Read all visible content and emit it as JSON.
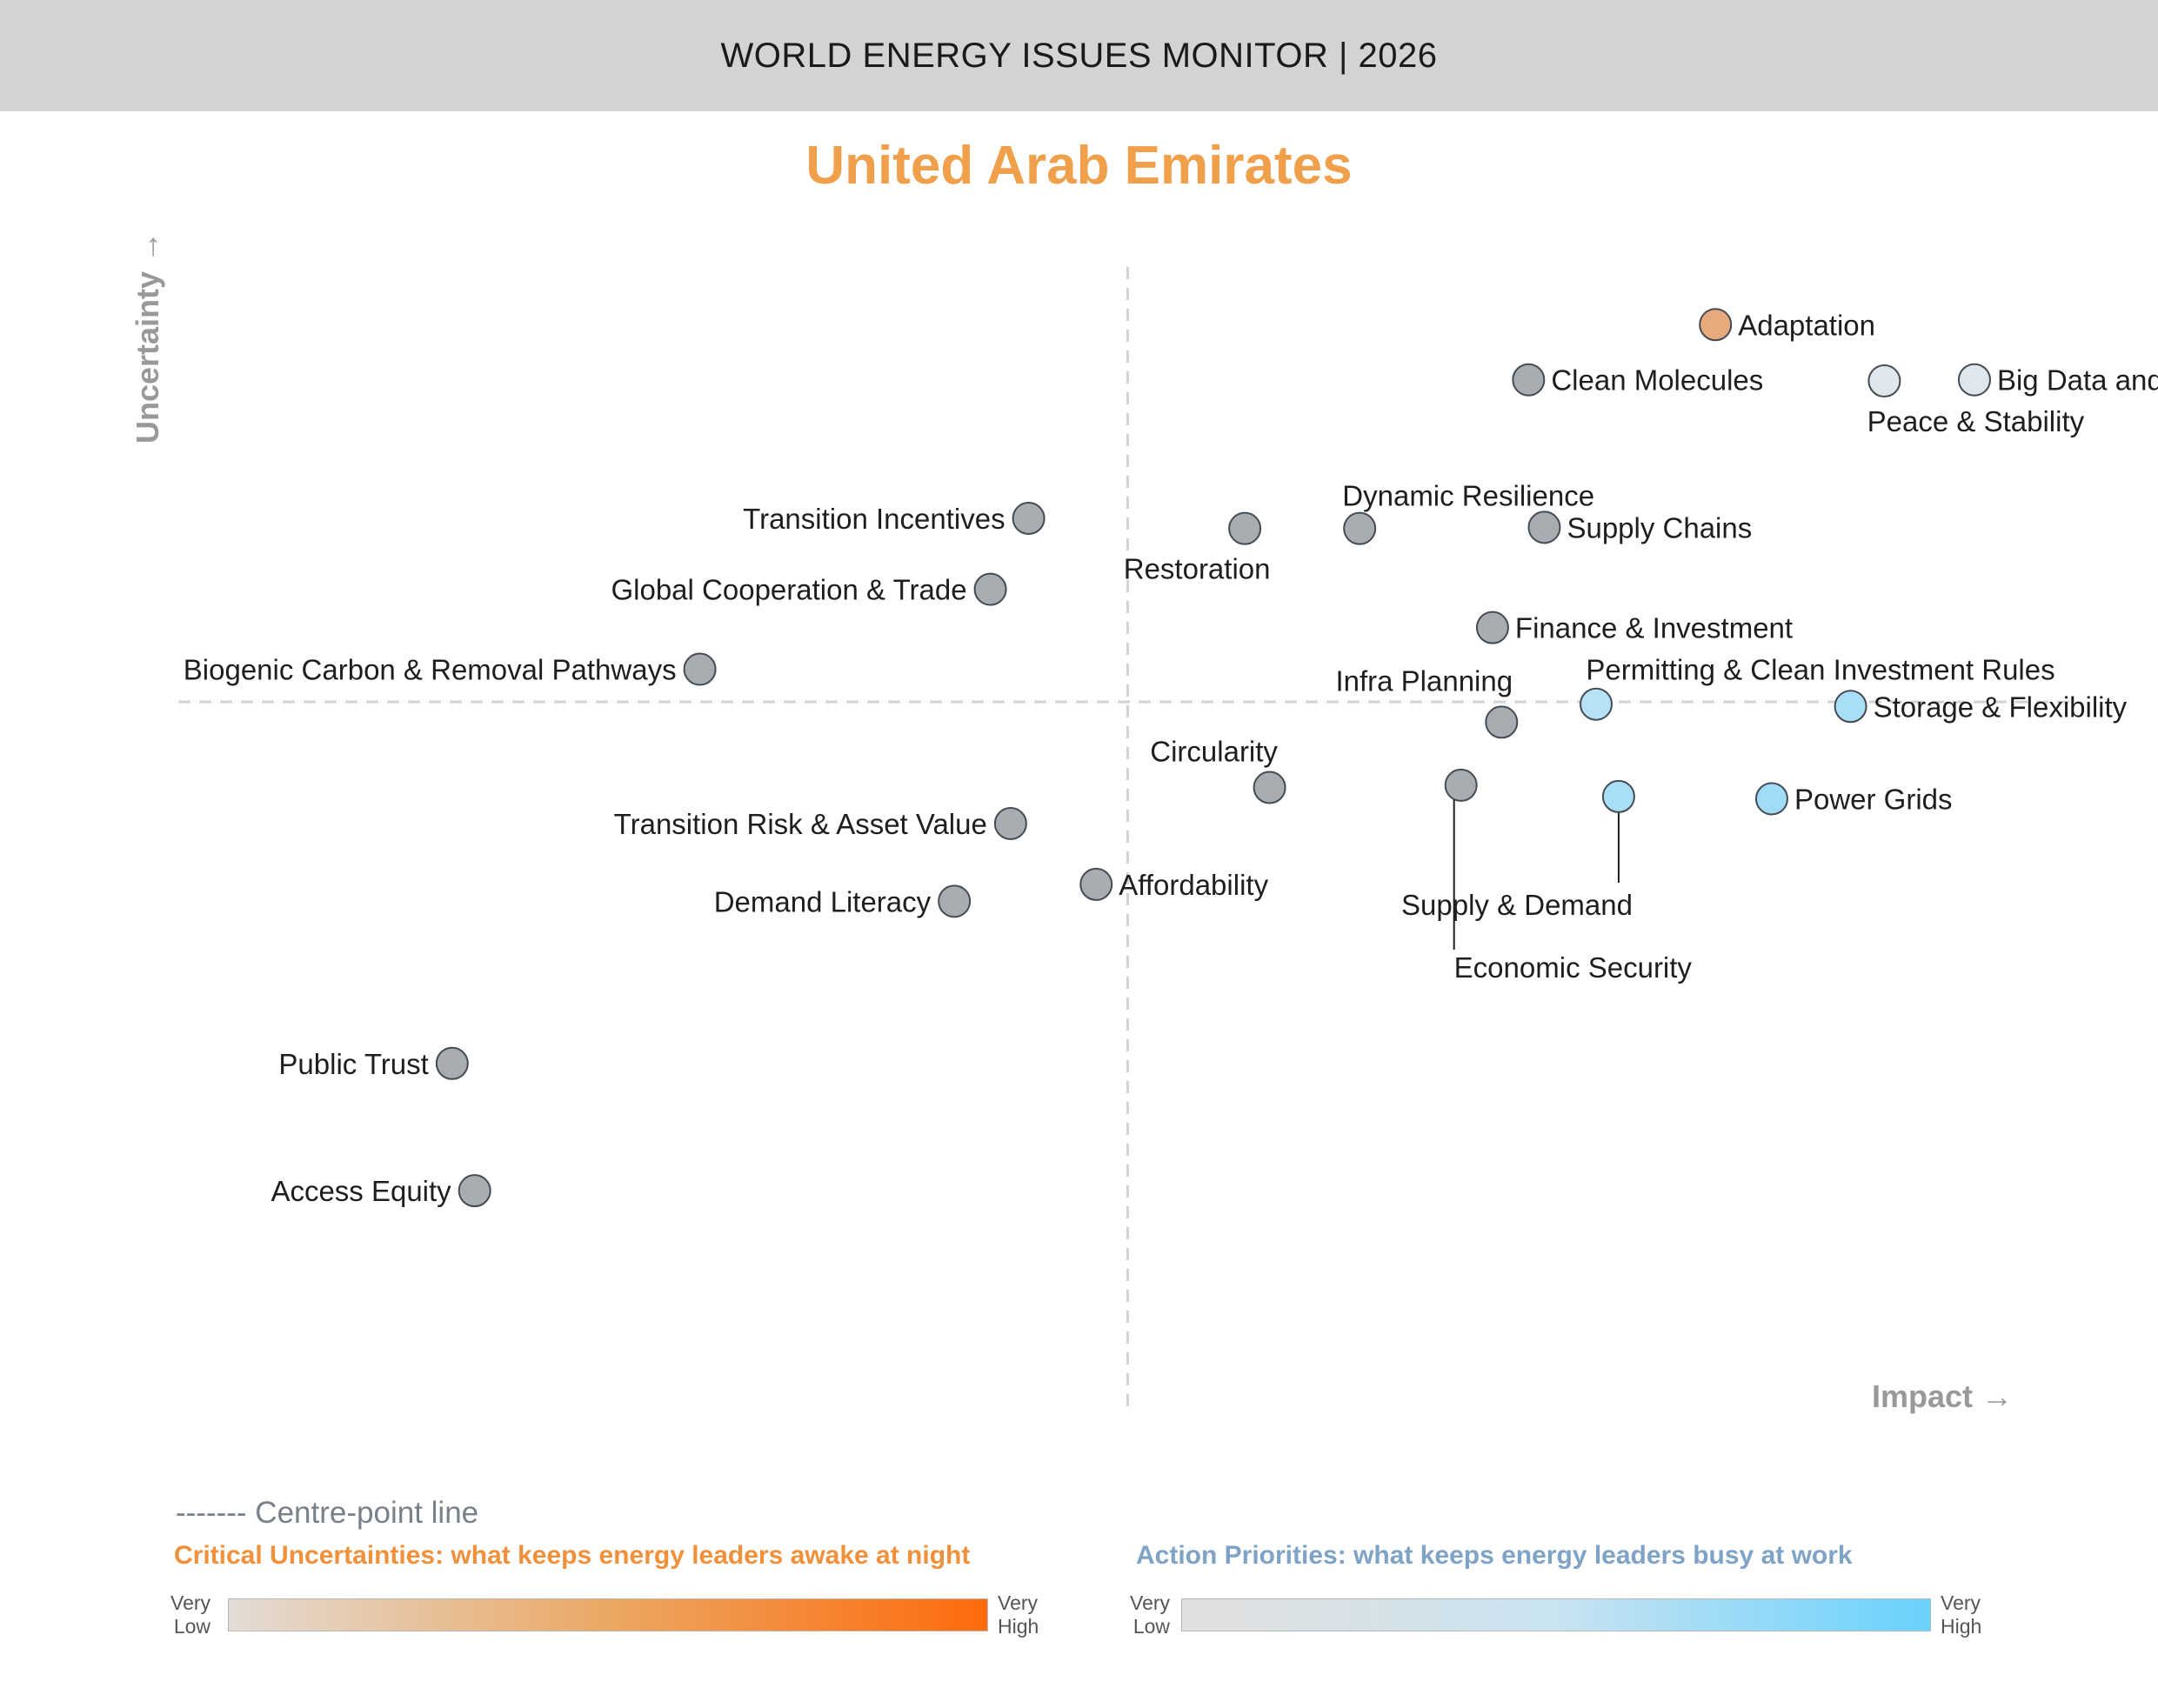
{
  "header": {
    "title": "WORLD ENERGY ISSUES MONITOR | 2026"
  },
  "country": "United Arab Emirates",
  "legend": {
    "centre_line": "------- Centre-point line",
    "uncertainties_title": "Critical Uncertainties: what keeps energy leaders awake at night",
    "priorities_title": "Action Priorities: what keeps energy leaders busy at work",
    "very_low_1": "Very",
    "very_low_2": "Low",
    "very_high_1": "Very",
    "very_high_2": "High",
    "orange_high": "#fe6a0c",
    "blue_high": "#69d2fd"
  },
  "chart_data": {
    "type": "scatter",
    "title": "United Arab Emirates",
    "xlabel": "Impact",
    "ylabel": "Uncertainty",
    "xlim": [
      0,
      100
    ],
    "ylim": [
      0,
      100
    ],
    "centre_point": {
      "x": 50,
      "y": 62
    },
    "points": [
      {
        "label": "Adaptation",
        "x": 76.1,
        "y": 95.5,
        "category": "uncertainty",
        "color": "#e8a97d"
      },
      {
        "label": "Clean Molecules",
        "x": 67.8,
        "y": 90.6,
        "category": "neutral",
        "color": "#a8adb1"
      },
      {
        "label": "Peace & Stability",
        "x": 83.6,
        "y": 90.5,
        "category": "priority",
        "color": "#dfe6ec"
      },
      {
        "label": "Big Data and AI",
        "x": 87.6,
        "y": 90.6,
        "category": "priority",
        "color": "#dfe6ec"
      },
      {
        "label": "Transition Incentives",
        "x": 45.6,
        "y": 78.3,
        "category": "neutral",
        "color": "#a8adb1"
      },
      {
        "label": "Restoration",
        "x": 55.2,
        "y": 77.4,
        "category": "neutral",
        "color": "#a8adb1"
      },
      {
        "label": "Dynamic Resilience",
        "x": 60.3,
        "y": 77.4,
        "category": "neutral",
        "color": "#a8adb1"
      },
      {
        "label": "Supply Chains",
        "x": 68.5,
        "y": 77.5,
        "category": "neutral",
        "color": "#a8adb1"
      },
      {
        "label": "Global Cooperation & Trade",
        "x": 43.9,
        "y": 72.0,
        "category": "neutral",
        "color": "#a8adb1"
      },
      {
        "label": "Finance & Investment",
        "x": 66.2,
        "y": 68.6,
        "category": "neutral",
        "color": "#a8adb1"
      },
      {
        "label": "Biogenic Carbon & Removal Pathways",
        "x": 31.0,
        "y": 64.9,
        "category": "neutral",
        "color": "#a8adb1"
      },
      {
        "label": "Permitting & Clean Investment Rules",
        "x": 70.8,
        "y": 61.8,
        "category": "priority",
        "color": "#b5e2f7"
      },
      {
        "label": "Storage & Flexibility",
        "x": 82.1,
        "y": 61.6,
        "category": "priority",
        "color": "#a9def7"
      },
      {
        "label": "Infra Planning",
        "x": 66.6,
        "y": 60.2,
        "category": "neutral",
        "color": "#a8adb1"
      },
      {
        "label": "Circularity",
        "x": 56.3,
        "y": 54.4,
        "category": "neutral",
        "color": "#a8adb1"
      },
      {
        "label": "Economic Security",
        "x": 64.8,
        "y": 54.6,
        "category": "neutral",
        "color": "#a8adb1"
      },
      {
        "label": "Supply & Demand",
        "x": 71.8,
        "y": 53.6,
        "category": "priority",
        "color": "#a9def7"
      },
      {
        "label": "Power Grids",
        "x": 78.6,
        "y": 53.4,
        "category": "priority",
        "color": "#a0dcf7"
      },
      {
        "label": "Transition Risk & Asset Value",
        "x": 44.8,
        "y": 51.2,
        "category": "neutral",
        "color": "#a8adb1"
      },
      {
        "label": "Affordability",
        "x": 48.6,
        "y": 45.8,
        "category": "neutral",
        "color": "#a8adb1"
      },
      {
        "label": "Demand Literacy",
        "x": 42.3,
        "y": 44.3,
        "category": "neutral",
        "color": "#a8adb1"
      },
      {
        "label": "Public Trust",
        "x": 20.0,
        "y": 29.9,
        "category": "neutral",
        "color": "#a8adb1"
      },
      {
        "label": "Access Equity",
        "x": 21.0,
        "y": 18.6,
        "category": "neutral",
        "color": "#a8adb1"
      }
    ]
  }
}
